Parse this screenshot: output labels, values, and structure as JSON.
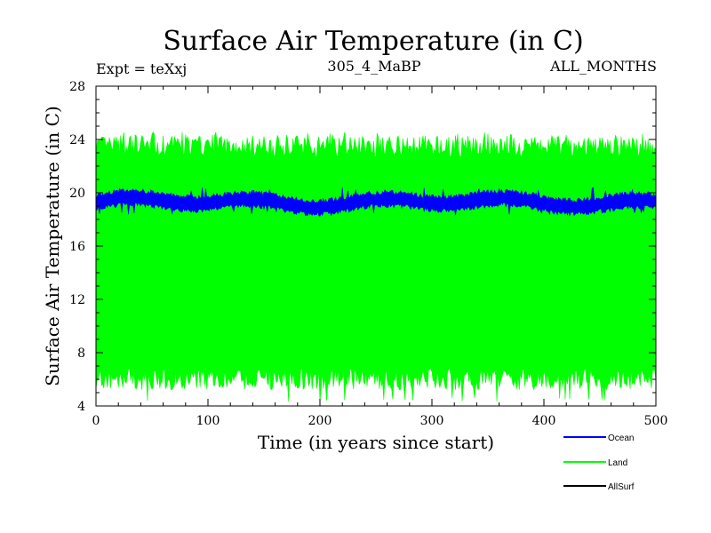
{
  "chart_data": {
    "type": "line",
    "title": "Surface Air Temperature (in C)",
    "header_left": "Expt = teXxj",
    "header_center": "305_4_MaBP",
    "header_right": "ALL_MONTHS",
    "xlabel": "Time (in years since start)",
    "ylabel": "Surface Air Temperature (in C)",
    "xlim": [
      0,
      500
    ],
    "ylim": [
      4,
      28
    ],
    "x_ticks": [
      "0",
      "100",
      "200",
      "300",
      "400",
      "500"
    ],
    "y_ticks": [
      "4",
      "8",
      "12",
      "16",
      "20",
      "24",
      "28"
    ],
    "legend_position": "bottom-right",
    "series": [
      {
        "name": "Ocean",
        "color": "#0000ff",
        "band_low": 18.8,
        "band_high": 19.8,
        "low_extreme": 18.3,
        "high_extreme": 20.4
      },
      {
        "name": "Land",
        "color": "#00ff00",
        "band_low": 6.0,
        "band_high": 23.5,
        "low_extreme": 4.3,
        "high_extreme": 24.6
      },
      {
        "name": "AllSurf",
        "color": "#000000",
        "band_low": null,
        "band_high": null
      }
    ]
  }
}
